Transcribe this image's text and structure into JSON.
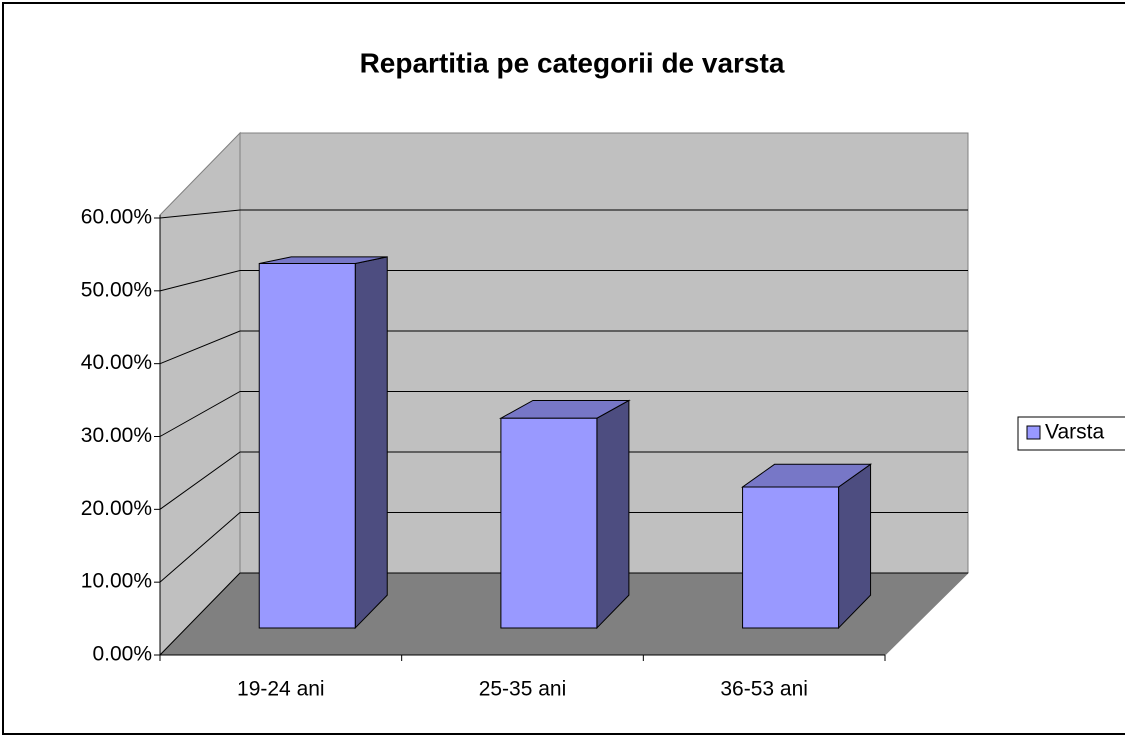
{
  "chart_data": {
    "type": "bar3d",
    "title": "Repartitia pe categorii de varsta",
    "categories": [
      "19-24 ani",
      "25-35 ani",
      "36-53 ani"
    ],
    "series": [
      {
        "name": "Varsta",
        "color": "#9999ff",
        "values": [
          53,
          30.5,
          20.5
        ]
      }
    ],
    "ylim": [
      0,
      60
    ],
    "yticks": [
      {
        "value": 0,
        "label": "0.00%"
      },
      {
        "value": 10,
        "label": "10.00%"
      },
      {
        "value": 20,
        "label": "20.00%"
      },
      {
        "value": 30,
        "label": "30.00%"
      },
      {
        "value": 40,
        "label": "40.00%"
      },
      {
        "value": 50,
        "label": "50.00%"
      },
      {
        "value": 60,
        "label": "60.00%"
      }
    ],
    "grid": true,
    "legend": "right"
  }
}
